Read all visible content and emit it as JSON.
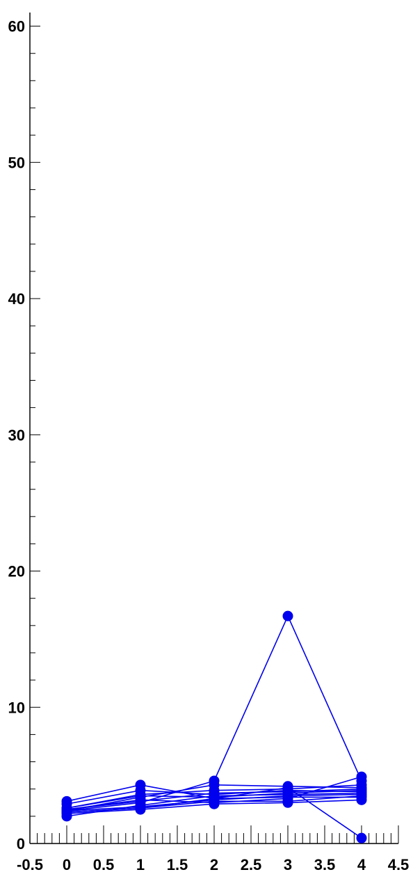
{
  "chart_data": {
    "type": "line",
    "title": "",
    "xlabel": "",
    "ylabel": "",
    "xlim": [
      -0.5,
      4.5
    ],
    "ylim": [
      0,
      61
    ],
    "x_ticks": [
      {
        "value": -0.5,
        "label": "-0.5"
      },
      {
        "value": 0,
        "label": "0"
      },
      {
        "value": 0.5,
        "label": "0.5"
      },
      {
        "value": 1,
        "label": "1"
      },
      {
        "value": 1.5,
        "label": "1.5"
      },
      {
        "value": 2,
        "label": "2"
      },
      {
        "value": 2.5,
        "label": "2.5"
      },
      {
        "value": 3,
        "label": "3"
      },
      {
        "value": 3.5,
        "label": "3.5"
      },
      {
        "value": 4,
        "label": "4"
      },
      {
        "value": 4.5,
        "label": "4.5"
      }
    ],
    "y_ticks": [
      {
        "value": 0,
        "label": "0"
      },
      {
        "value": 10,
        "label": "10"
      },
      {
        "value": 20,
        "label": "20"
      },
      {
        "value": 30,
        "label": "30"
      },
      {
        "value": 40,
        "label": "40"
      },
      {
        "value": 50,
        "label": "50"
      },
      {
        "value": 60,
        "label": "60"
      }
    ],
    "x": [
      0,
      1,
      2,
      3,
      4
    ],
    "series_color": "#0000ee",
    "series": [
      {
        "values": [
          2.4,
          3.0,
          4.6,
          16.7,
          4.6
        ]
      },
      {
        "values": [
          3.1,
          4.3,
          3.3,
          3.4,
          3.4
        ]
      },
      {
        "values": [
          2.9,
          3.9,
          3.6,
          3.9,
          3.8
        ]
      },
      {
        "values": [
          2.6,
          3.6,
          3.9,
          4.0,
          4.3
        ]
      },
      {
        "values": [
          2.4,
          3.4,
          4.3,
          4.2,
          4.1
        ]
      },
      {
        "values": [
          2.5,
          3.2,
          3.0,
          3.3,
          4.9
        ]
      },
      {
        "values": [
          2.2,
          2.5,
          2.9,
          3.0,
          3.2
        ]
      },
      {
        "values": [
          2.0,
          2.8,
          3.5,
          3.6,
          3.7
        ]
      },
      {
        "values": [
          2.3,
          2.6,
          3.1,
          3.1,
          3.5
        ]
      },
      {
        "values": [
          2.5,
          3.1,
          3.7,
          3.8,
          4.0
        ]
      },
      {
        "values": [
          2.4,
          2.7,
          3.2,
          3.5,
          3.6
        ]
      },
      {
        "values": [
          2.6,
          3.5,
          3.4,
          3.7,
          3.9
        ]
      },
      {
        "values": [
          2.3,
          2.6,
          3.3,
          4.1,
          0.4
        ]
      }
    ]
  }
}
